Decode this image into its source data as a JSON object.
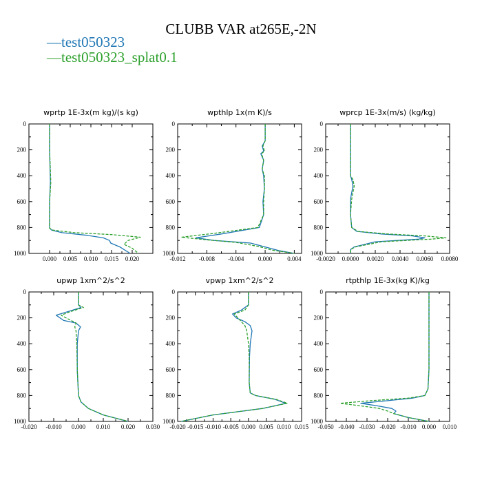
{
  "figure_title": "CLUBB VAR at265E,-2N",
  "legend": [
    {
      "name": "test050323",
      "color": "#1f77b4",
      "dash_glyph": "—"
    },
    {
      "name": "test050323_splat0.1",
      "color": "#2ca02c",
      "dash_glyph": "—"
    }
  ],
  "chart_data": [
    {
      "type": "line",
      "title": "wprtp  1E-3x(m kg)/(s kg)",
      "xlim": [
        -0.005,
        0.025
      ],
      "ylim": [
        1000,
        0
      ],
      "xticks": [
        0.0,
        0.005,
        0.01,
        0.015,
        0.02
      ],
      "xtick_labels": [
        "0.000",
        "0.005",
        "0.010",
        "0.015",
        "0.020"
      ],
      "yticks": [
        0,
        200,
        400,
        600,
        800,
        1000
      ],
      "ytick_labels": [
        "0",
        "200",
        "400",
        "600",
        "800",
        "1000"
      ],
      "series": [
        {
          "name": "test050323",
          "color": "#1f77b4",
          "dashed": false,
          "x": [
            0.0,
            0.0,
            0.0002,
            0.0,
            0.0,
            0.0,
            0.0,
            0.0005,
            0.003,
            0.009,
            0.013,
            0.0145,
            0.0148,
            0.017,
            0.0195
          ],
          "y": [
            0,
            200,
            450,
            600,
            700,
            790,
            805,
            820,
            840,
            860,
            880,
            900,
            920,
            950,
            1000
          ]
        },
        {
          "name": "test050323_splat0.1",
          "color": "#2ca02c",
          "dashed": true,
          "x": [
            0.0,
            0.0,
            0.0003,
            0.0,
            0.0,
            0.0,
            0.0,
            0.0008,
            0.006,
            0.015,
            0.022,
            0.019,
            0.018,
            0.02,
            0.0215
          ],
          "y": [
            0,
            200,
            450,
            600,
            700,
            790,
            805,
            820,
            840,
            855,
            875,
            900,
            930,
            960,
            1000
          ]
        }
      ]
    },
    {
      "type": "line",
      "title": "wpthlp  1x(m K)/s",
      "xlim": [
        -0.012,
        0.005
      ],
      "ylim": [
        1000,
        0
      ],
      "xticks": [
        -0.012,
        -0.008,
        -0.004,
        0.0,
        0.004
      ],
      "xtick_labels": [
        "-0.012",
        "-0.008",
        "-0.004",
        "0.000",
        "0.004"
      ],
      "yticks": [
        0,
        200,
        400,
        600,
        800,
        1000
      ],
      "ytick_labels": [
        "0",
        "200",
        "400",
        "600",
        "800",
        "1000"
      ],
      "series": [
        {
          "name": "test050323",
          "color": "#1f77b4",
          "dashed": false,
          "x": [
            0.0,
            0.0,
            -0.0004,
            -0.0002,
            -0.0006,
            -0.0002,
            -0.0004,
            -0.0002,
            -0.0001,
            -0.0003,
            -0.0002,
            -0.0008,
            -0.006,
            -0.0095,
            -0.007,
            -0.002,
            0.0,
            0.002,
            0.004
          ],
          "y": [
            0,
            130,
            170,
            210,
            230,
            280,
            350,
            400,
            500,
            600,
            700,
            800,
            850,
            880,
            900,
            920,
            950,
            980,
            1000
          ]
        },
        {
          "name": "test050323_splat0.1",
          "color": "#2ca02c",
          "dashed": true,
          "x": [
            0.0,
            0.0,
            -0.0003,
            -0.0001,
            -0.0005,
            -0.0002,
            -0.0004,
            -0.0001,
            -0.0001,
            -0.0002,
            -0.0002,
            -0.001,
            -0.007,
            -0.0115,
            -0.008,
            -0.004,
            -0.001,
            0.001,
            0.004
          ],
          "y": [
            0,
            130,
            170,
            210,
            230,
            280,
            350,
            400,
            500,
            600,
            700,
            800,
            845,
            875,
            895,
            915,
            945,
            975,
            1000
          ]
        }
      ]
    },
    {
      "type": "line",
      "title": "wprcp  1E-3x(m/s) (kg/kg)",
      "xlim": [
        -0.002,
        0.008
      ],
      "ylim": [
        1000,
        0
      ],
      "xticks": [
        -0.002,
        0.0,
        0.002,
        0.004,
        0.006,
        0.008
      ],
      "xtick_labels": [
        "-0.0020",
        "0.0000",
        "0.0020",
        "0.0040",
        "0.0060",
        "0.0080"
      ],
      "yticks": [
        0,
        200,
        400,
        600,
        800,
        1000
      ],
      "ytick_labels": [
        "0",
        "200",
        "400",
        "600",
        "800",
        "1000"
      ],
      "series": [
        {
          "name": "test050323",
          "color": "#1f77b4",
          "dashed": false,
          "x": [
            0.0,
            0.0,
            0.0001,
            0.0002,
            0.0001,
            0.0,
            0.0,
            0.0001,
            0.0005,
            0.0025,
            0.005,
            0.006,
            0.0055,
            0.002,
            0.0003,
            0.0,
            0.0
          ],
          "y": [
            0,
            400,
            430,
            480,
            530,
            580,
            700,
            800,
            830,
            850,
            865,
            880,
            890,
            910,
            950,
            970,
            1000
          ]
        },
        {
          "name": "test050323_splat0.1",
          "color": "#2ca02c",
          "dashed": true,
          "x": [
            0.0,
            0.0,
            0.0002,
            0.0003,
            0.0002,
            0.0001,
            0.0,
            0.0001,
            0.0006,
            0.003,
            0.006,
            0.0077,
            0.0065,
            0.0025,
            0.0004,
            0.0,
            0.0
          ],
          "y": [
            0,
            400,
            430,
            480,
            530,
            580,
            700,
            800,
            830,
            850,
            865,
            880,
            890,
            910,
            950,
            970,
            1000
          ]
        }
      ]
    },
    {
      "type": "line",
      "title": "upwp  1xm^2/s^2",
      "xlim": [
        -0.02,
        0.03
      ],
      "ylim": [
        1000,
        0
      ],
      "xticks": [
        -0.02,
        -0.01,
        0.0,
        0.01,
        0.02,
        0.03
      ],
      "xtick_labels": [
        "-0.020",
        "-0.010",
        "0.000",
        "0.010",
        "0.020",
        "0.030"
      ],
      "yticks": [
        0,
        200,
        400,
        600,
        800,
        1000
      ],
      "ytick_labels": [
        "0",
        "200",
        "400",
        "600",
        "800",
        "1000"
      ],
      "series": [
        {
          "name": "test050323",
          "color": "#1f77b4",
          "dashed": false,
          "x": [
            0.0,
            0.0,
            0.001,
            -0.004,
            -0.009,
            -0.006,
            -0.001,
            0.0008,
            0.0,
            -0.0005,
            -0.0005,
            0.0,
            0.001,
            0.004,
            0.01,
            0.02
          ],
          "y": [
            0,
            100,
            120,
            150,
            180,
            220,
            240,
            270,
            300,
            400,
            600,
            800,
            850,
            900,
            950,
            1000
          ]
        },
        {
          "name": "test050323_splat0.1",
          "color": "#2ca02c",
          "dashed": true,
          "x": [
            0.0,
            0.0,
            0.002,
            -0.003,
            -0.007,
            -0.003,
            -0.001,
            -0.0015,
            -0.001,
            -0.0007,
            -0.0005,
            0.0,
            0.001,
            0.004,
            0.01,
            0.02
          ],
          "y": [
            0,
            100,
            120,
            150,
            180,
            220,
            240,
            270,
            300,
            400,
            600,
            800,
            850,
            900,
            950,
            1000
          ]
        }
      ]
    },
    {
      "type": "line",
      "title": "vpwp  1xm^2/s^2",
      "xlim": [
        -0.02,
        0.015
      ],
      "ylim": [
        1000,
        0
      ],
      "xticks": [
        -0.02,
        -0.015,
        -0.01,
        -0.005,
        0.0,
        0.005,
        0.01,
        0.015
      ],
      "xtick_labels": [
        "-0.020",
        "-0.015",
        "-0.010",
        "-0.005",
        "0.000",
        "0.005",
        "0.010",
        "0.015"
      ],
      "yticks": [
        0,
        200,
        400,
        600,
        800,
        1000
      ],
      "ytick_labels": [
        "0",
        "200",
        "400",
        "600",
        "800",
        "1000"
      ],
      "series": [
        {
          "name": "test050323",
          "color": "#1f77b4",
          "dashed": false,
          "x": [
            0.0,
            0.0,
            -0.002,
            -0.0045,
            -0.0035,
            -0.001,
            0.0005,
            0.001,
            0.0005,
            0.0003,
            0.0002,
            0.0005,
            0.002,
            0.0075,
            0.0105,
            0.004,
            -0.01,
            -0.019
          ],
          "y": [
            0,
            100,
            140,
            170,
            200,
            230,
            260,
            300,
            400,
            500,
            700,
            780,
            800,
            830,
            860,
            900,
            950,
            1000
          ]
        },
        {
          "name": "test050323_splat0.1",
          "color": "#2ca02c",
          "dashed": true,
          "x": [
            0.0,
            0.0,
            -0.001,
            -0.004,
            -0.003,
            -0.002,
            -0.001,
            -0.0005,
            0.0,
            0.0002,
            0.0002,
            0.0005,
            0.002,
            0.0078,
            0.011,
            0.004,
            -0.01,
            -0.019
          ],
          "y": [
            0,
            100,
            140,
            170,
            200,
            230,
            260,
            300,
            400,
            500,
            700,
            780,
            800,
            830,
            860,
            900,
            950,
            1000
          ]
        }
      ]
    },
    {
      "type": "line",
      "title": "rtpthlp  1E-3x(kg K)/kg",
      "xlim": [
        -0.05,
        0.01
      ],
      "ylim": [
        1000,
        0
      ],
      "xticks": [
        -0.05,
        -0.04,
        -0.03,
        -0.02,
        -0.01,
        0.0,
        0.01
      ],
      "xtick_labels": [
        "-0.050",
        "-0.040",
        "-0.030",
        "-0.020",
        "-0.010",
        "0.000",
        "0.010"
      ],
      "yticks": [
        0,
        200,
        400,
        600,
        800,
        1000
      ],
      "ytick_labels": [
        "0",
        "200",
        "400",
        "600",
        "800",
        "1000"
      ],
      "series": [
        {
          "name": "test050323",
          "color": "#1f77b4",
          "dashed": false,
          "x": [
            0.0,
            0.0,
            -0.0005,
            -0.002,
            -0.008,
            -0.02,
            -0.033,
            -0.025,
            -0.018,
            -0.016,
            -0.017,
            -0.01,
            0.0
          ],
          "y": [
            0,
            600,
            750,
            800,
            820,
            840,
            860,
            880,
            900,
            920,
            940,
            970,
            1000
          ]
        },
        {
          "name": "test050323_splat0.1",
          "color": "#2ca02c",
          "dashed": true,
          "x": [
            0.0,
            0.0,
            -0.0005,
            -0.002,
            -0.01,
            -0.028,
            -0.043,
            -0.033,
            -0.024,
            -0.02,
            -0.017,
            -0.01,
            0.0
          ],
          "y": [
            0,
            600,
            750,
            800,
            820,
            840,
            860,
            880,
            900,
            920,
            940,
            970,
            1000
          ]
        }
      ]
    }
  ]
}
